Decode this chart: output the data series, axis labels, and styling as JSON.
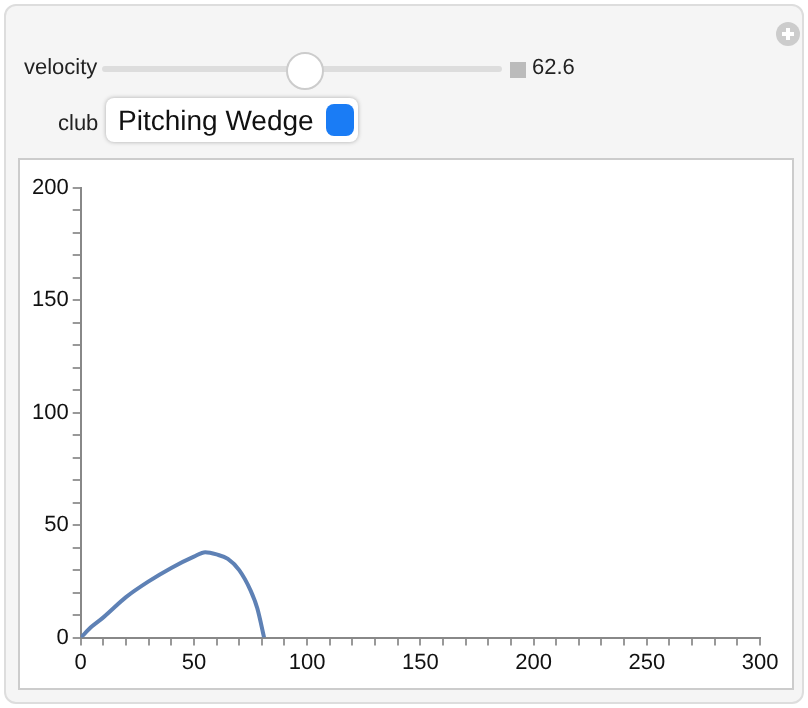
{
  "chart_data": {
    "type": "line",
    "annotations": [
      "velocity",
      "62.6",
      "club",
      "Pitching Wedge"
    ],
    "x": [
      0,
      5,
      10,
      20,
      30,
      40,
      50,
      55,
      60,
      65,
      70,
      75,
      78,
      81
    ],
    "series": [
      {
        "color": "#5e81b5",
        "values": [
          0,
          5,
          9,
          18,
          25,
          31,
          36,
          38,
          37,
          35,
          30,
          21,
          13,
          0
        ]
      }
    ],
    "xlim": [
      0,
      300
    ],
    "ylim": [
      0,
      200
    ],
    "xticks": [
      0,
      {
        "value": 10,
        "label": null
      },
      {
        "value": 20,
        "label": null
      },
      {
        "value": 30,
        "label": null
      },
      {
        "value": 40,
        "label": null
      },
      50,
      {
        "value": 60,
        "label": null
      },
      {
        "value": 70,
        "label": null
      },
      {
        "value": 80,
        "label": null
      },
      {
        "value": 90,
        "label": null
      },
      100,
      {
        "value": 110,
        "label": null
      },
      {
        "value": 120,
        "label": null
      },
      {
        "value": 130,
        "label": null
      },
      {
        "value": 140,
        "label": null
      },
      150,
      {
        "value": 160,
        "label": null
      },
      {
        "value": 170,
        "label": null
      },
      {
        "value": 180,
        "label": null
      },
      {
        "value": 190,
        "label": null
      },
      200,
      {
        "value": 210,
        "label": null
      },
      {
        "value": 220,
        "label": null
      },
      {
        "value": 230,
        "label": null
      },
      {
        "value": 240,
        "label": null
      },
      250,
      {
        "value": 260,
        "label": null
      },
      {
        "value": 270,
        "label": null
      },
      {
        "value": 280,
        "label": null
      },
      {
        "value": 290,
        "label": null
      },
      300
    ],
    "yticks": [
      0,
      {
        "value": 10,
        "label": null
      },
      {
        "value": 20,
        "label": null
      },
      {
        "value": 30,
        "label": null
      },
      {
        "value": 40,
        "label": null
      },
      50,
      {
        "value": 60,
        "label": null
      },
      {
        "value": 70,
        "label": null
      },
      {
        "value": 80,
        "label": null
      },
      {
        "value": 90,
        "label": null
      },
      100,
      {
        "value": 110,
        "label": null
      },
      {
        "value": 120,
        "label": null
      },
      {
        "value": 130,
        "label": null
      },
      {
        "value": 140,
        "label": null
      },
      150,
      {
        "value": 160,
        "label": null
      },
      {
        "value": 170,
        "label": null
      },
      {
        "value": 180,
        "label": null
      },
      {
        "value": 190,
        "label": null
      },
      200
    ],
    "grid": false,
    "legend": false,
    "marker": "none",
    "line_style": "solid"
  }
}
